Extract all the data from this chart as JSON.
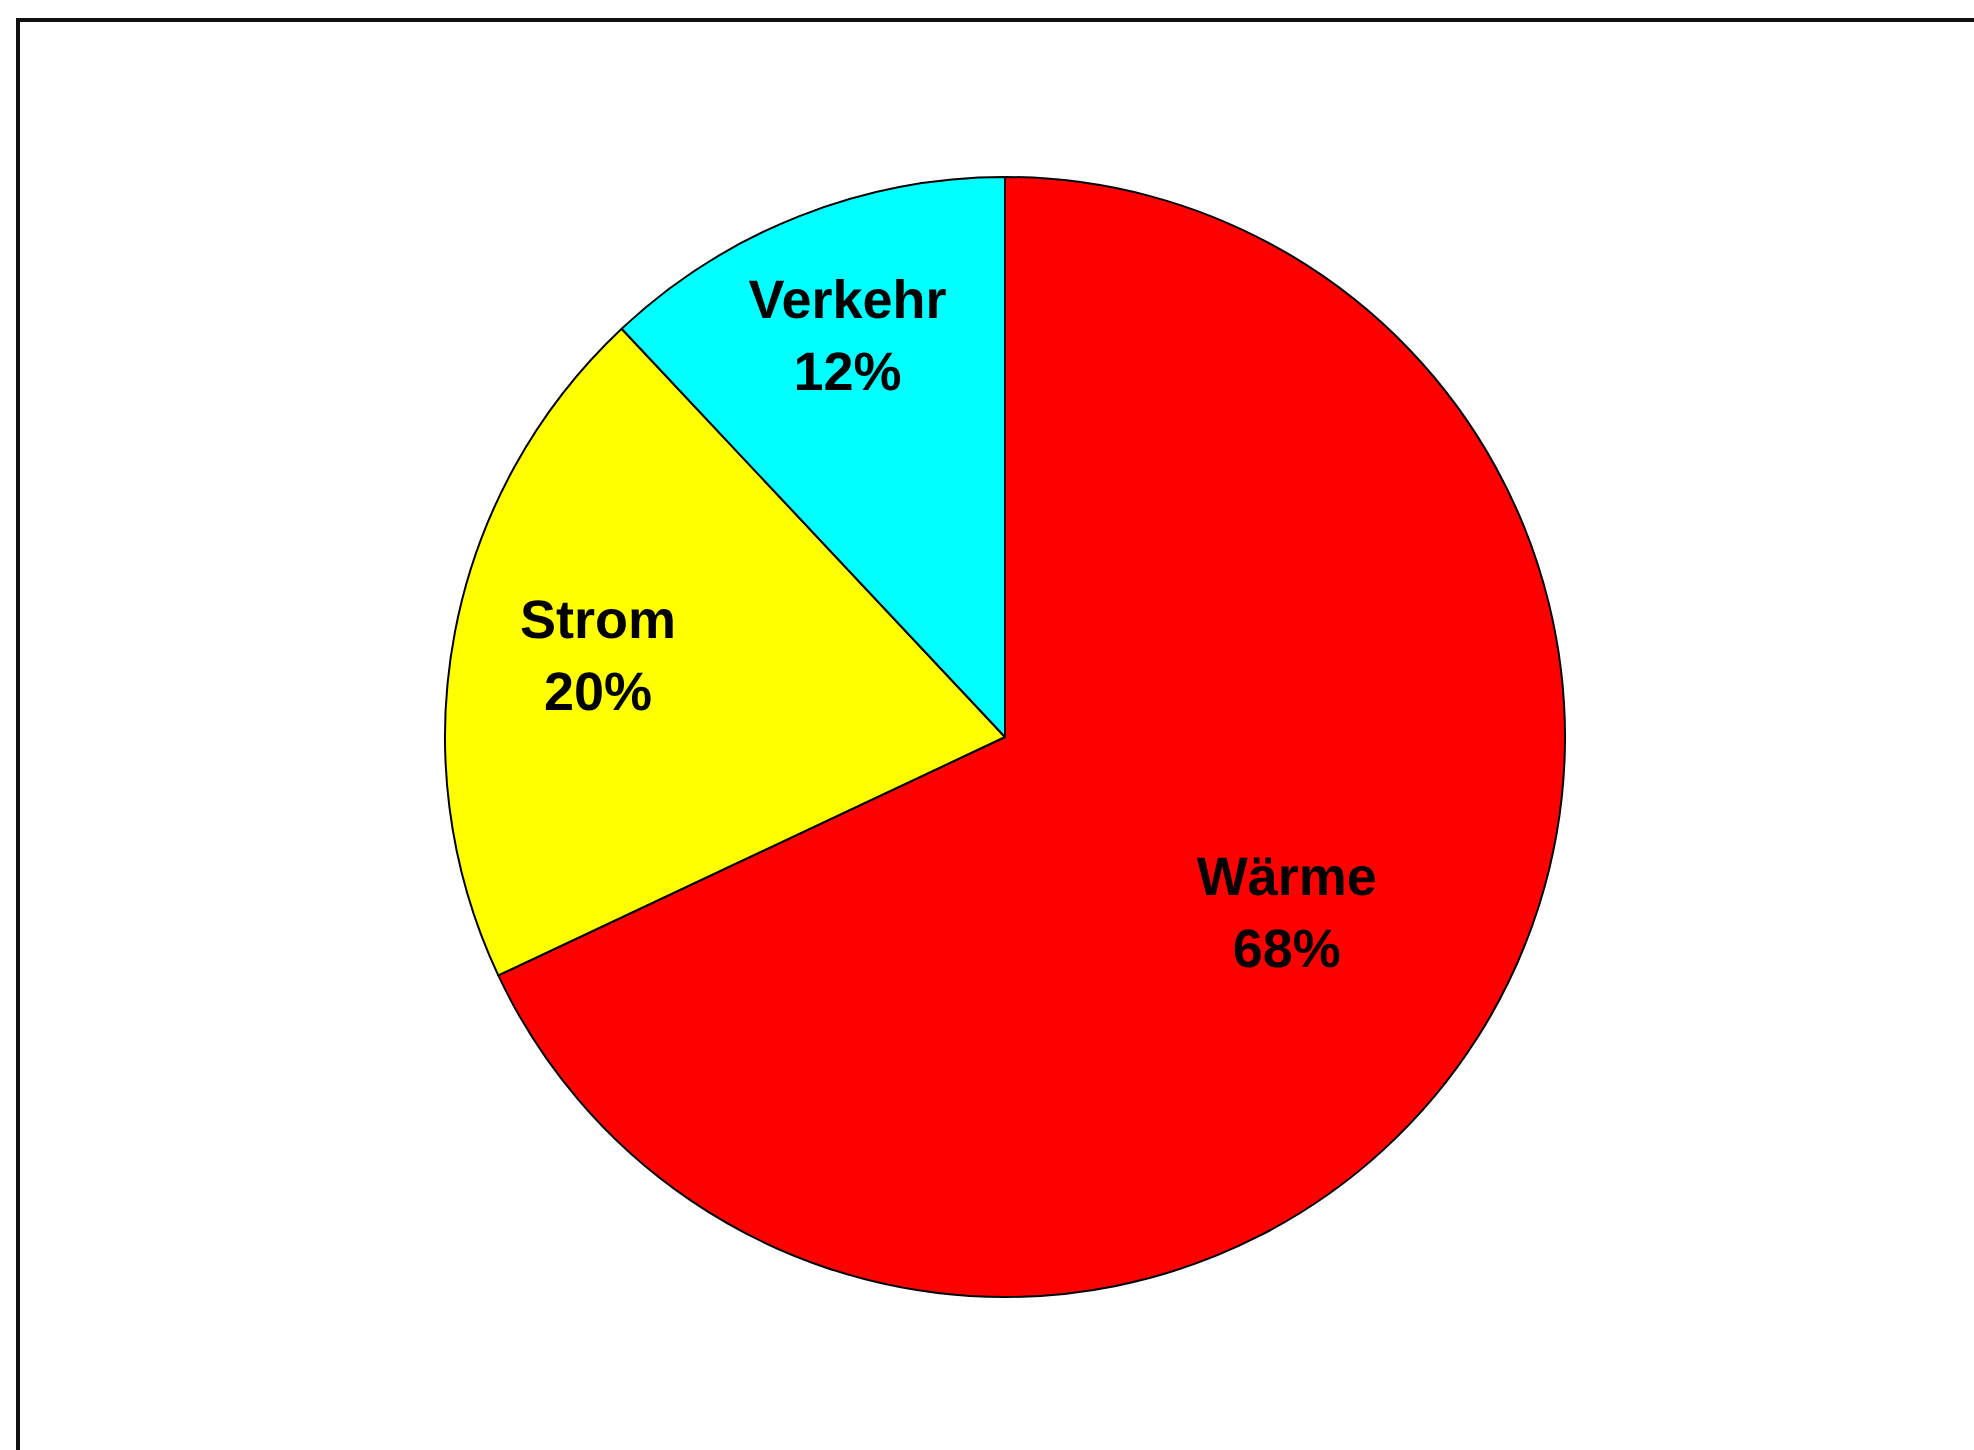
{
  "chart_data": {
    "type": "pie",
    "categories": [
      "Wärme",
      "Strom",
      "Verkehr"
    ],
    "values": [
      68,
      20,
      12
    ],
    "colors": [
      "#ff0000",
      "#ffff00",
      "#00ffff"
    ],
    "value_labels": [
      "68%",
      "20%",
      "12%"
    ]
  }
}
